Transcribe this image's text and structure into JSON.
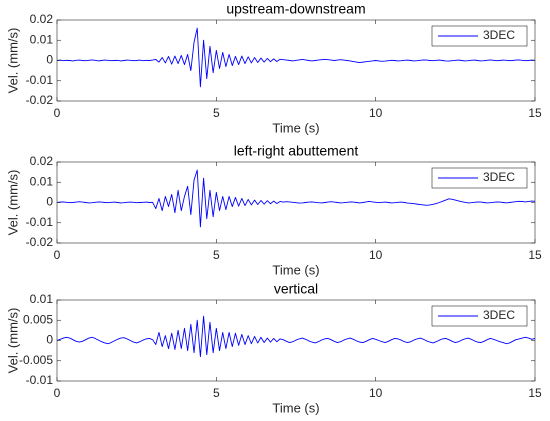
{
  "chart_data": [
    {
      "type": "line",
      "title": "upstream-downstream",
      "xlabel": "Time (s)",
      "ylabel": "Vel. (mm/s)",
      "xlim": [
        0,
        15
      ],
      "xticks": [
        0,
        5,
        10,
        15
      ],
      "ylim": [
        -0.02,
        0.02
      ],
      "yticks": [
        -0.02,
        -0.01,
        0,
        0.01,
        0.02
      ],
      "legend": "northeast",
      "grid": false,
      "x": [
        0,
        0.1,
        0.2,
        0.3,
        0.4,
        0.5,
        0.6,
        0.7,
        0.8,
        0.9,
        1,
        1.1,
        1.2,
        1.3,
        1.4,
        1.5,
        1.6,
        1.7,
        1.8,
        1.9,
        2,
        2.1,
        2.2,
        2.3,
        2.4,
        2.5,
        2.6,
        2.7,
        2.8,
        2.9,
        3,
        3.1,
        3.2,
        3.3,
        3.4,
        3.5,
        3.6,
        3.7,
        3.8,
        3.9,
        4,
        4.1,
        4.2,
        4.3,
        4.4,
        4.5,
        4.6,
        4.7,
        4.8,
        4.9,
        5,
        5.1,
        5.2,
        5.3,
        5.4,
        5.5,
        5.6,
        5.7,
        5.8,
        5.9,
        6,
        6.1,
        6.2,
        6.3,
        6.4,
        6.5,
        6.6,
        6.7,
        6.8,
        6.9,
        7,
        7.1,
        7.2,
        7.3,
        7.4,
        7.5,
        7.6,
        7.7,
        7.8,
        7.9,
        8,
        8.1,
        8.2,
        8.3,
        8.4,
        8.5,
        8.6,
        8.7,
        8.8,
        8.9,
        9,
        9.1,
        9.2,
        9.3,
        9.4,
        9.5,
        9.6,
        9.7,
        9.8,
        9.9,
        10,
        10.1,
        10.2,
        10.3,
        10.4,
        10.5,
        10.6,
        10.7,
        10.8,
        10.9,
        11,
        11.1,
        11.2,
        11.3,
        11.4,
        11.5,
        11.6,
        11.7,
        11.8,
        11.9,
        12,
        12.1,
        12.2,
        12.3,
        12.4,
        12.5,
        12.6,
        12.7,
        12.8,
        12.9,
        13,
        13.1,
        13.2,
        13.3,
        13.4,
        13.5,
        13.6,
        13.7,
        13.8,
        13.9,
        14,
        14.1,
        14.2,
        14.3,
        14.4,
        14.5,
        14.6,
        14.7,
        14.8,
        14.9,
        15
      ],
      "series": [
        {
          "name": "3DEC",
          "color": "#0000ff",
          "values": [
            0,
            0.0002,
            -0.0001,
            0.0001,
            0,
            -0.0002,
            0.0001,
            0.0002,
            0,
            -0.0001,
            0.0001,
            0.0003,
            0.0001,
            -0.0002,
            0,
            0.0002,
            0.0001,
            -0.0001,
            0,
            0.0001,
            -0.0002,
            0,
            0.0002,
            0.0001,
            -0.0001,
            0,
            0.0002,
            -0.0001,
            0.0001,
            0,
            0.0002,
            0.0005,
            -0.0008,
            0.0015,
            -0.0012,
            0.002,
            -0.0018,
            0.0022,
            -0.0015,
            0.0025,
            -0.002,
            0.003,
            -0.005,
            0.009,
            0.016,
            -0.013,
            0.01,
            -0.009,
            0.007,
            -0.006,
            0.005,
            -0.004,
            0.004,
            -0.003,
            0.003,
            -0.0025,
            0.002,
            -0.002,
            0.0022,
            -0.0015,
            0.0018,
            -0.0012,
            0.0015,
            -0.001,
            0.0012,
            -0.0008,
            0.001,
            -0.0006,
            0.0008,
            -0.0005,
            0.0006,
            0.0004,
            0.0002,
            0,
            -0.0002,
            0.0001,
            0.0003,
            0.0005,
            0.0003,
            0,
            -0.0002,
            0,
            0.0002,
            0.0004,
            0.0006,
            0.0004,
            0.0002,
            0,
            0.0002,
            0.0004,
            0.0002,
            0,
            -0.0002,
            -0.0005,
            -0.0008,
            -0.001,
            -0.0008,
            -0.0006,
            -0.0004,
            -0.0002,
            0,
            -0.0002,
            -0.0004,
            -0.0003,
            -0.0001,
            0.0001,
            0,
            -0.0002,
            -0.0001,
            0.0001,
            0.0002,
            0,
            -0.0002,
            -0.0001,
            0.0001,
            0.0003,
            0.0002,
            0,
            -0.0001,
            0.0001,
            0.0002,
            0,
            -0.0002,
            -0.0003,
            -0.0001,
            0.0001,
            0.0002,
            0,
            -0.0002,
            -0.0001,
            0.0001,
            0.0002,
            0,
            -0.0002,
            -0.0001,
            0.0001,
            0.0003,
            0.0001,
            -0.0001,
            0,
            0.0002,
            0.0001,
            -0.0001,
            0,
            0.0002,
            0.0003,
            0.0001,
            -0.0001,
            0,
            0.0002,
            0.0001
          ]
        }
      ]
    },
    {
      "type": "line",
      "title": "left-right abuttement",
      "xlabel": "Time (s)",
      "ylabel": "Vel. (mm/s)",
      "xlim": [
        0,
        15
      ],
      "xticks": [
        0,
        5,
        10,
        15
      ],
      "ylim": [
        -0.02,
        0.02
      ],
      "yticks": [
        -0.02,
        -0.01,
        0,
        0.01,
        0.02
      ],
      "legend": "northeast",
      "grid": false,
      "x": [
        0,
        0.1,
        0.2,
        0.3,
        0.4,
        0.5,
        0.6,
        0.7,
        0.8,
        0.9,
        1,
        1.1,
        1.2,
        1.3,
        1.4,
        1.5,
        1.6,
        1.7,
        1.8,
        1.9,
        2,
        2.1,
        2.2,
        2.3,
        2.4,
        2.5,
        2.6,
        2.7,
        2.8,
        2.9,
        3,
        3.1,
        3.2,
        3.3,
        3.4,
        3.5,
        3.6,
        3.7,
        3.8,
        3.9,
        4,
        4.1,
        4.2,
        4.3,
        4.4,
        4.5,
        4.6,
        4.7,
        4.8,
        4.9,
        5,
        5.1,
        5.2,
        5.3,
        5.4,
        5.5,
        5.6,
        5.7,
        5.8,
        5.9,
        6,
        6.1,
        6.2,
        6.3,
        6.4,
        6.5,
        6.6,
        6.7,
        6.8,
        6.9,
        7,
        7.1,
        7.2,
        7.3,
        7.4,
        7.5,
        7.6,
        7.7,
        7.8,
        7.9,
        8,
        8.1,
        8.2,
        8.3,
        8.4,
        8.5,
        8.6,
        8.7,
        8.8,
        8.9,
        9,
        9.1,
        9.2,
        9.3,
        9.4,
        9.5,
        9.6,
        9.7,
        9.8,
        9.9,
        10,
        10.1,
        10.2,
        10.3,
        10.4,
        10.5,
        10.6,
        10.7,
        10.8,
        10.9,
        11,
        11.1,
        11.2,
        11.3,
        11.4,
        11.5,
        11.6,
        11.7,
        11.8,
        11.9,
        12,
        12.1,
        12.2,
        12.3,
        12.4,
        12.5,
        12.6,
        12.7,
        12.8,
        12.9,
        13,
        13.1,
        13.2,
        13.3,
        13.4,
        13.5,
        13.6,
        13.7,
        13.8,
        13.9,
        14,
        14.1,
        14.2,
        14.3,
        14.4,
        14.5,
        14.6,
        14.7,
        14.8,
        14.9,
        15
      ],
      "series": [
        {
          "name": "3DEC",
          "color": "#0000ff",
          "values": [
            0,
            0.0002,
            0.0003,
            0.0001,
            -0.0001,
            0,
            0.0002,
            0.0004,
            0.0002,
            0,
            -0.0002,
            -0.0001,
            0.0001,
            0.0003,
            0.0002,
            0,
            -0.0001,
            0.0001,
            0.0002,
            0,
            -0.0002,
            -0.0001,
            0.0001,
            0.0002,
            0.0001,
            -0.0001,
            0,
            0.0001,
            0.0002,
            0,
            0.0001,
            -0.003,
            0.002,
            -0.004,
            0.003,
            -0.002,
            0.004,
            -0.005,
            0.006,
            -0.004,
            0.003,
            0.008,
            -0.006,
            0.011,
            0.016,
            -0.012,
            0.012,
            -0.008,
            0.006,
            -0.007,
            0.005,
            -0.004,
            0.003,
            -0.0035,
            0.003,
            -0.002,
            0.0025,
            -0.0018,
            0.002,
            -0.0015,
            0.0015,
            -0.0012,
            0.0012,
            -0.001,
            0.001,
            -0.0008,
            0.0009,
            -0.0006,
            0.0007,
            -0.0005,
            0.0005,
            0.0002,
            0.0004,
            0.0003,
            0.0001,
            -0.0001,
            -0.0003,
            -0.0002,
            0,
            0.0002,
            0.0003,
            0.0001,
            -0.0001,
            -0.0002,
            0,
            0.0002,
            0.0004,
            0.0002,
            0,
            -0.0002,
            -0.0001,
            0.0001,
            0.0003,
            0.0002,
            0,
            -0.0002,
            0,
            0.0003,
            0.0005,
            0.0003,
            0.0001,
            -0.0001,
            0.0001,
            0.0002,
            0,
            -0.0002,
            -0.0001,
            0.0001,
            0.0002,
            0,
            -0.0003,
            -0.0004,
            -0.0006,
            -0.0008,
            -0.001,
            -0.0012,
            -0.0014,
            -0.0012,
            -0.0009,
            -0.0005,
            0,
            0.0006,
            0.0012,
            0.0018,
            0.0016,
            0.0012,
            0.0008,
            0.0004,
            0.0001,
            -0.0002,
            -0.0001,
            0.0001,
            0.0003,
            0.0002,
            0,
            -0.0002,
            -0.0001,
            0.0001,
            0.0003,
            0.0002,
            0,
            -0.0002,
            0,
            0.0002,
            0.0004,
            0.0006,
            0.0005,
            0.0003,
            0.0005,
            0.0007,
            0.0006
          ]
        }
      ]
    },
    {
      "type": "line",
      "title": "vertical",
      "xlabel": "Time (s)",
      "ylabel": "Vel. (mm/s)",
      "xlim": [
        0,
        15
      ],
      "xticks": [
        0,
        5,
        10,
        15
      ],
      "ylim": [
        -0.01,
        0.01
      ],
      "yticks": [
        -0.01,
        -0.005,
        0,
        0.005,
        0.01
      ],
      "legend": "northeast",
      "grid": false,
      "x": [
        0,
        0.1,
        0.2,
        0.3,
        0.4,
        0.5,
        0.6,
        0.7,
        0.8,
        0.9,
        1,
        1.1,
        1.2,
        1.3,
        1.4,
        1.5,
        1.6,
        1.7,
        1.8,
        1.9,
        2,
        2.1,
        2.2,
        2.3,
        2.4,
        2.5,
        2.6,
        2.7,
        2.8,
        2.9,
        3,
        3.1,
        3.2,
        3.3,
        3.4,
        3.5,
        3.6,
        3.7,
        3.8,
        3.9,
        4,
        4.1,
        4.2,
        4.3,
        4.4,
        4.5,
        4.6,
        4.7,
        4.8,
        4.9,
        5,
        5.1,
        5.2,
        5.3,
        5.4,
        5.5,
        5.6,
        5.7,
        5.8,
        5.9,
        6,
        6.1,
        6.2,
        6.3,
        6.4,
        6.5,
        6.6,
        6.7,
        6.8,
        6.9,
        7,
        7.1,
        7.2,
        7.3,
        7.4,
        7.5,
        7.6,
        7.7,
        7.8,
        7.9,
        8,
        8.1,
        8.2,
        8.3,
        8.4,
        8.5,
        8.6,
        8.7,
        8.8,
        8.9,
        9,
        9.1,
        9.2,
        9.3,
        9.4,
        9.5,
        9.6,
        9.7,
        9.8,
        9.9,
        10,
        10.1,
        10.2,
        10.3,
        10.4,
        10.5,
        10.6,
        10.7,
        10.8,
        10.9,
        11,
        11.1,
        11.2,
        11.3,
        11.4,
        11.5,
        11.6,
        11.7,
        11.8,
        11.9,
        12,
        12.1,
        12.2,
        12.3,
        12.4,
        12.5,
        12.6,
        12.7,
        12.8,
        12.9,
        13,
        13.1,
        13.2,
        13.3,
        13.4,
        13.5,
        13.6,
        13.7,
        13.8,
        13.9,
        14,
        14.1,
        14.2,
        14.3,
        14.4,
        14.5,
        14.6,
        14.7,
        14.8,
        14.9,
        15
      ],
      "series": [
        {
          "name": "3DEC",
          "color": "#0000ff",
          "values": [
            0,
            0.0003,
            0.0006,
            0.0008,
            0.0006,
            0.0002,
            -0.0002,
            -0.0004,
            -0.0002,
            0.0002,
            0.0006,
            0.0008,
            0.0005,
            0.0001,
            -0.0003,
            -0.0006,
            -0.0008,
            -0.0005,
            -0.0001,
            0.0003,
            0.0006,
            0.0007,
            0.0004,
            0,
            -0.0004,
            -0.0006,
            -0.0003,
            0.0001,
            0.0004,
            0.0005,
            0.0002,
            -0.001,
            0.002,
            -0.0015,
            0.0012,
            -0.002,
            0.0018,
            -0.0022,
            0.0025,
            -0.002,
            0.003,
            -0.0025,
            0.004,
            -0.003,
            0.005,
            -0.004,
            0.006,
            -0.0035,
            0.0045,
            -0.003,
            0.003,
            -0.0025,
            0.002,
            -0.002,
            0.002,
            -0.0015,
            0.0018,
            -0.0012,
            0.0015,
            -0.001,
            0.0012,
            -0.0008,
            0.001,
            -0.0006,
            0.0008,
            -0.0005,
            0.0006,
            -0.0004,
            0.0005,
            -0.0003,
            0.0004,
            0.0002,
            -0.0002,
            -0.0005,
            -0.0003,
            0.0001,
            0.0004,
            0.0006,
            0.0003,
            -0.0001,
            -0.0004,
            -0.0006,
            -0.0003,
            0.0001,
            0.0004,
            0.0005,
            0.0002,
            -0.0002,
            -0.0005,
            -0.0003,
            0.0001,
            0.0004,
            0.0006,
            0.0003,
            -0.0001,
            -0.0004,
            -0.0005,
            -0.0002,
            0.0002,
            0.0005,
            0.0003,
            0,
            -0.0003,
            -0.0005,
            -0.0002,
            0.0002,
            0.0005,
            0.0004,
            0.0001,
            -0.0003,
            -0.0005,
            -0.0003,
            0.0001,
            0.0004,
            0.0006,
            0.0003,
            -0.0001,
            -0.0004,
            -0.0006,
            -0.0003,
            0.0001,
            0.0004,
            0.0005,
            0.0002,
            -0.0002,
            -0.0005,
            -0.0003,
            0.0001,
            0.0004,
            0.0006,
            0.0003,
            -0.0001,
            -0.0004,
            -0.0005,
            -0.0002,
            0.0002,
            0.0005,
            0.0003,
            0,
            -0.0003,
            -0.0005,
            -0.0008,
            -0.0006,
            -0.0002,
            0.0002,
            0.0004,
            0.0006,
            0.0008,
            0.0006,
            0.0003,
            0.0005
          ]
        }
      ]
    }
  ]
}
